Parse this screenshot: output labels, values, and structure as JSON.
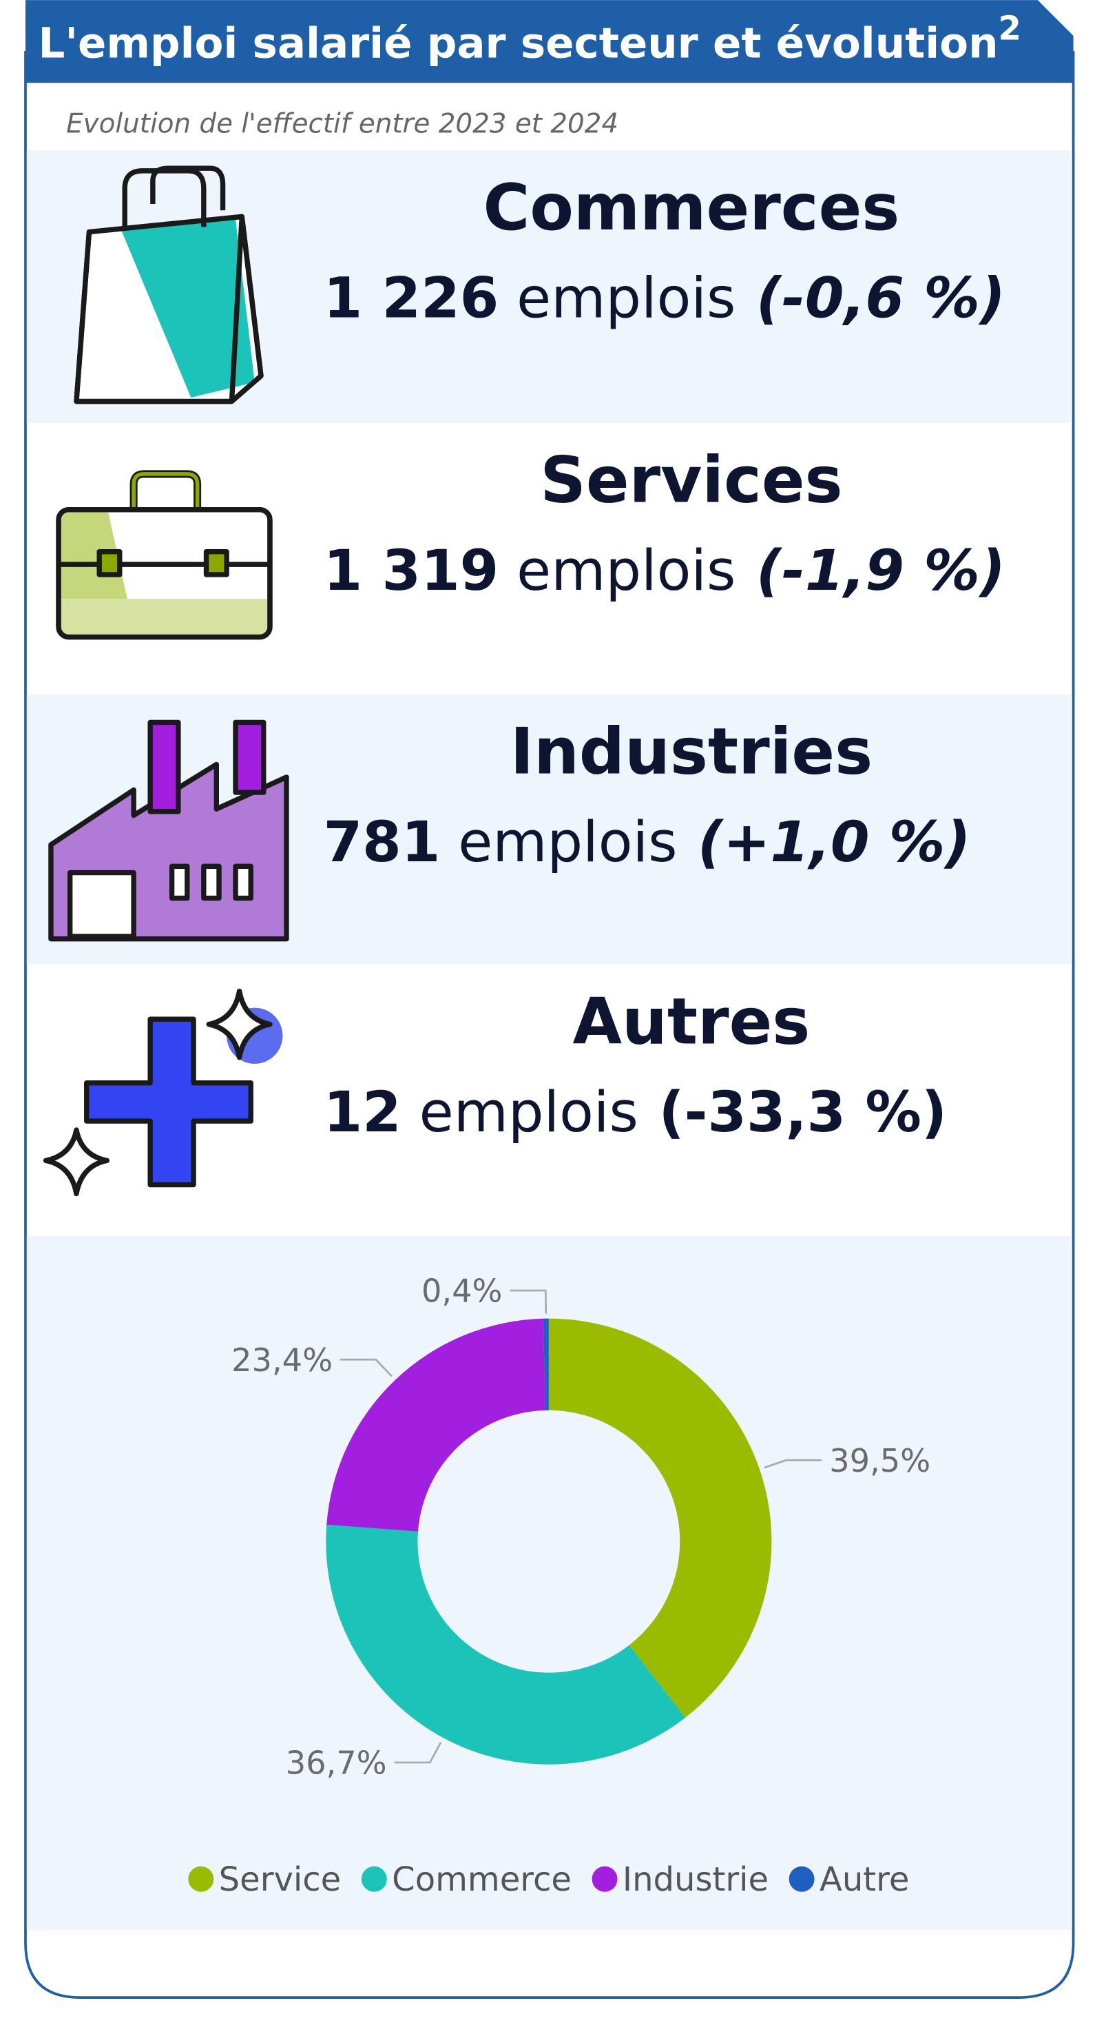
{
  "header": {
    "title": "L'emploi salarié par secteur et évolution",
    "title_note": "2",
    "subtitle": "Evolution de l'effectif entre 2023 et 2024"
  },
  "sectors": [
    {
      "name": "Commerces",
      "count": "1 226",
      "unit": "emplois",
      "change": "(-0,6 %)"
    },
    {
      "name": "Services",
      "count": "1 319",
      "unit": "emplois",
      "change": "(-1,9 %)"
    },
    {
      "name": "Industries",
      "count": "781",
      "unit": "emplois",
      "change": "(+1,0 %)"
    },
    {
      "name": "Autres",
      "count": "12",
      "unit": "emplois",
      "change": "(-33,3 %)"
    }
  ],
  "chart_data": {
    "type": "donut",
    "categories": [
      "Service",
      "Commerce",
      "Industrie",
      "Autre"
    ],
    "values": [
      39.5,
      36.7,
      23.4,
      0.4
    ],
    "value_labels": [
      "39,5%",
      "36,7%",
      "23,4%",
      "0,4%"
    ],
    "colors": [
      "#9bbb00",
      "#1bc3b8",
      "#a21fe0",
      "#1f5fbf"
    ],
    "legend": "bottom"
  }
}
